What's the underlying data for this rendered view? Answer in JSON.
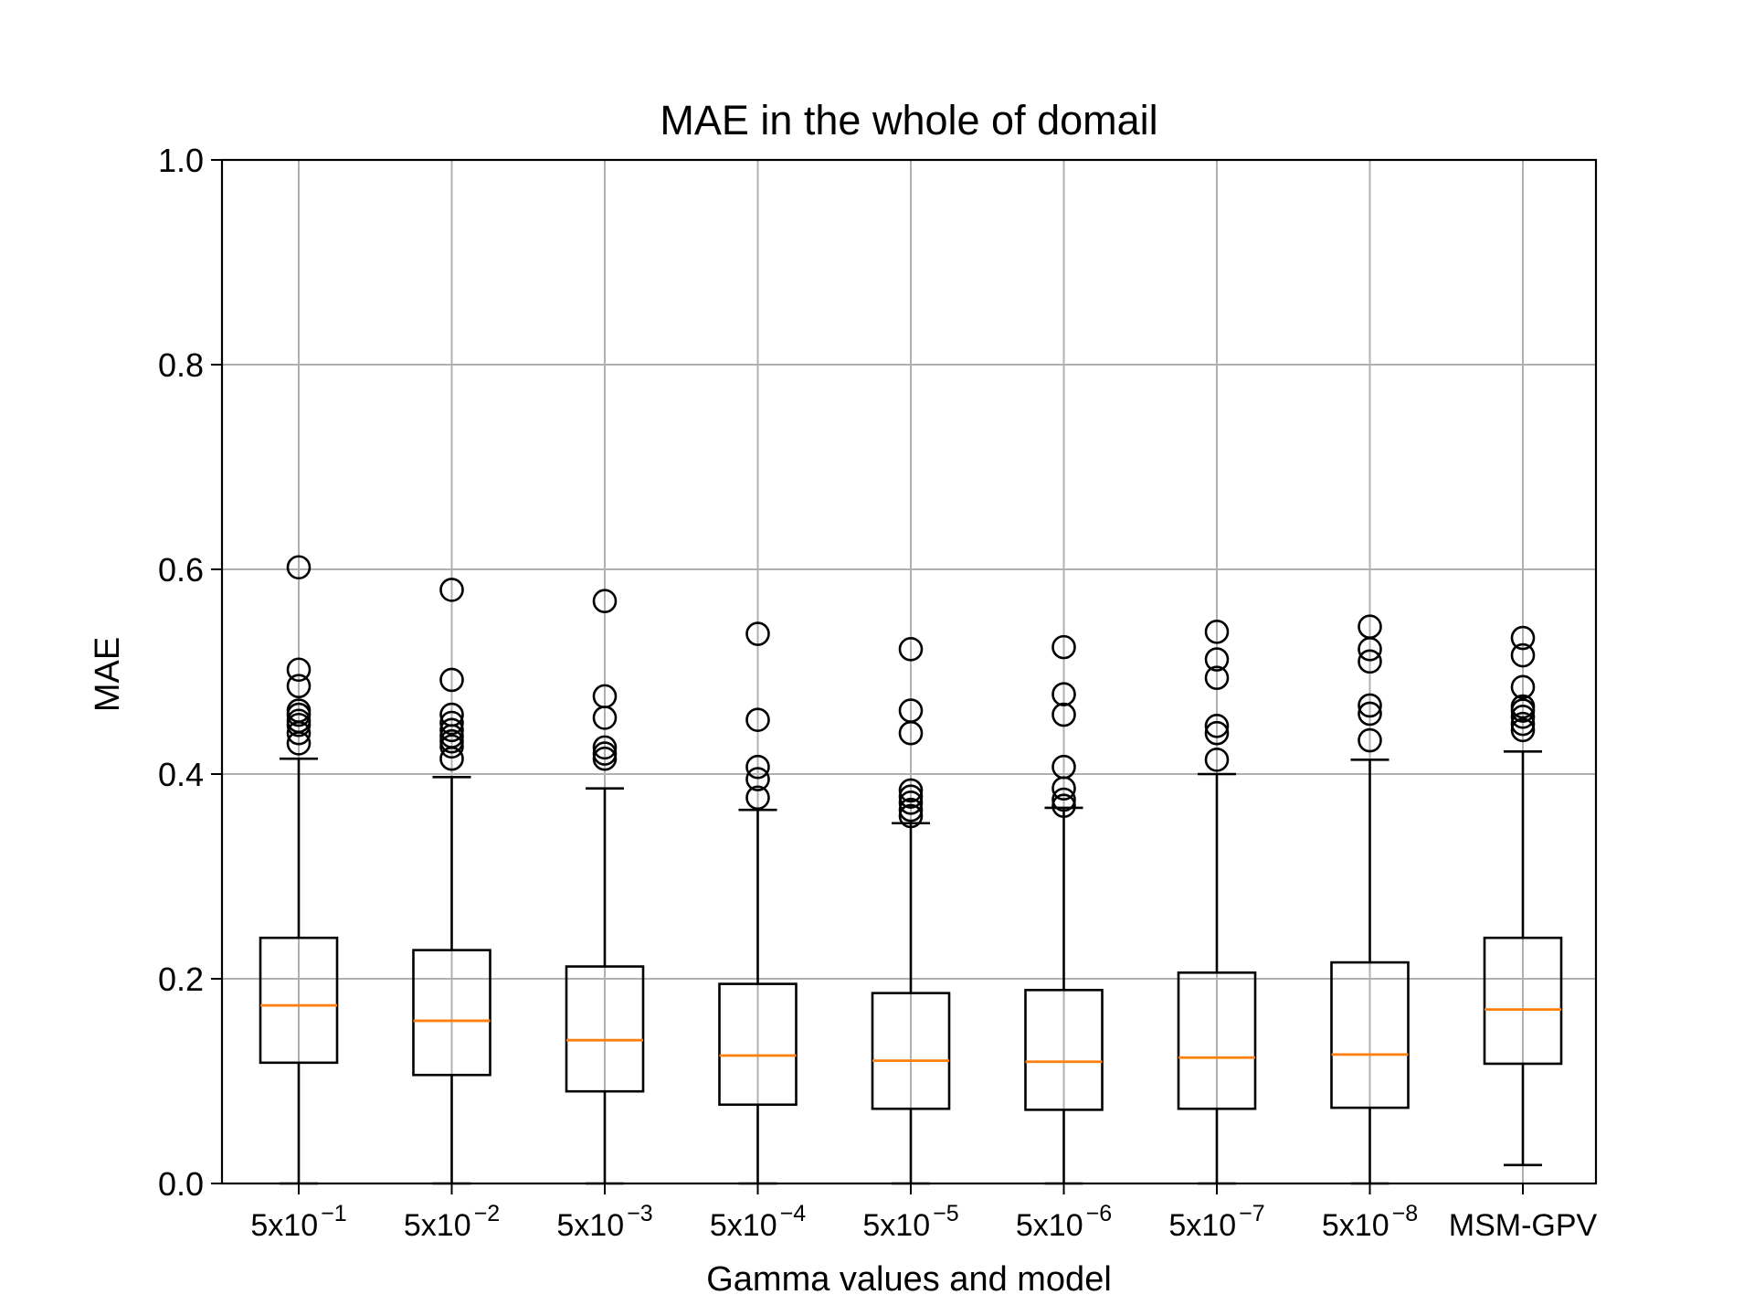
{
  "chart_data": {
    "type": "box",
    "title": "MAE in the whole of domail",
    "xlabel": "Gamma values and model",
    "ylabel": "MAE",
    "ylim": [
      0.0,
      1.0
    ],
    "yticks": [
      "0.0",
      "0.2",
      "0.4",
      "0.6",
      "0.8",
      "1.0"
    ],
    "grid": true,
    "colors": {
      "box": "#000000",
      "median": "#ff7f0e",
      "grid": "#b0b0b0"
    },
    "categories": [
      {
        "base": "5x10",
        "sup": "−1"
      },
      {
        "base": "5x10",
        "sup": "−2"
      },
      {
        "base": "5x10",
        "sup": "−3"
      },
      {
        "base": "5x10",
        "sup": "−4"
      },
      {
        "base": "5x10",
        "sup": "−5"
      },
      {
        "base": "5x10",
        "sup": "−6"
      },
      {
        "base": "5x10",
        "sup": "−7"
      },
      {
        "base": "5x10",
        "sup": "−8"
      },
      {
        "base": "MSM-GPV",
        "sup": ""
      }
    ],
    "boxes": [
      {
        "whislo": 0.0,
        "q1": 0.118,
        "med": 0.174,
        "q3": 0.24,
        "whishi": 0.415,
        "fliers": [
          0.43,
          0.44,
          0.448,
          0.452,
          0.458,
          0.462,
          0.486,
          0.502,
          0.602
        ]
      },
      {
        "whislo": 0.0,
        "q1": 0.106,
        "med": 0.159,
        "q3": 0.228,
        "whishi": 0.397,
        "fliers": [
          0.415,
          0.427,
          0.432,
          0.437,
          0.443,
          0.45,
          0.458,
          0.492,
          0.58
        ]
      },
      {
        "whislo": 0.0,
        "q1": 0.09,
        "med": 0.14,
        "q3": 0.212,
        "whishi": 0.386,
        "fliers": [
          0.415,
          0.42,
          0.426,
          0.455,
          0.476,
          0.569
        ]
      },
      {
        "whislo": 0.0,
        "q1": 0.077,
        "med": 0.125,
        "q3": 0.195,
        "whishi": 0.365,
        "fliers": [
          0.377,
          0.395,
          0.407,
          0.453,
          0.537
        ]
      },
      {
        "whislo": 0.0,
        "q1": 0.073,
        "med": 0.12,
        "q3": 0.186,
        "whishi": 0.352,
        "fliers": [
          0.359,
          0.365,
          0.372,
          0.378,
          0.384,
          0.44,
          0.462,
          0.522
        ]
      },
      {
        "whislo": 0.0,
        "q1": 0.072,
        "med": 0.119,
        "q3": 0.189,
        "whishi": 0.367,
        "fliers": [
          0.369,
          0.375,
          0.386,
          0.407,
          0.458,
          0.478,
          0.524
        ]
      },
      {
        "whislo": 0.0,
        "q1": 0.073,
        "med": 0.123,
        "q3": 0.206,
        "whishi": 0.4,
        "fliers": [
          0.414,
          0.44,
          0.447,
          0.494,
          0.512,
          0.539
        ]
      },
      {
        "whislo": 0.0,
        "q1": 0.074,
        "med": 0.126,
        "q3": 0.216,
        "whishi": 0.414,
        "fliers": [
          0.433,
          0.459,
          0.467,
          0.51,
          0.522,
          0.544
        ]
      },
      {
        "whislo": 0.018,
        "q1": 0.117,
        "med": 0.17,
        "q3": 0.24,
        "whishi": 0.422,
        "fliers": [
          0.443,
          0.449,
          0.456,
          0.462,
          0.466,
          0.485,
          0.516,
          0.533
        ]
      }
    ]
  }
}
